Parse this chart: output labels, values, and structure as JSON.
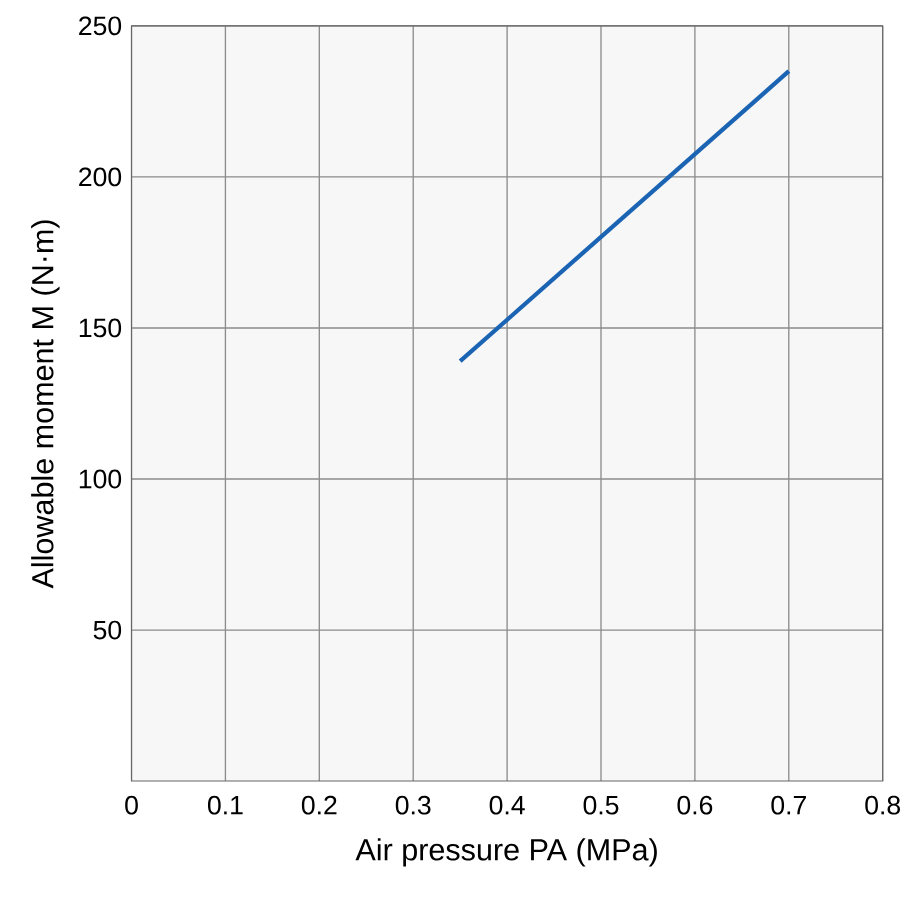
{
  "chart_data": {
    "type": "line",
    "xlabel": "Air pressure PA  (MPa)",
    "ylabel": "Allowable moment M  (N·m)",
    "x": [
      0.35,
      0.7
    ],
    "series": [
      {
        "color": "#1b64b4",
        "values": [
          139,
          235
        ]
      }
    ],
    "xlim": [
      0,
      0.8
    ],
    "xticks": [
      0,
      0.1,
      0.2,
      0.3,
      0.4,
      0.5,
      0.6,
      0.7,
      0.8
    ],
    "ylim": [
      0,
      250
    ],
    "yticks": [
      50,
      100,
      150,
      200,
      250
    ],
    "grid": true,
    "marker": "none",
    "line_style": "solid"
  }
}
